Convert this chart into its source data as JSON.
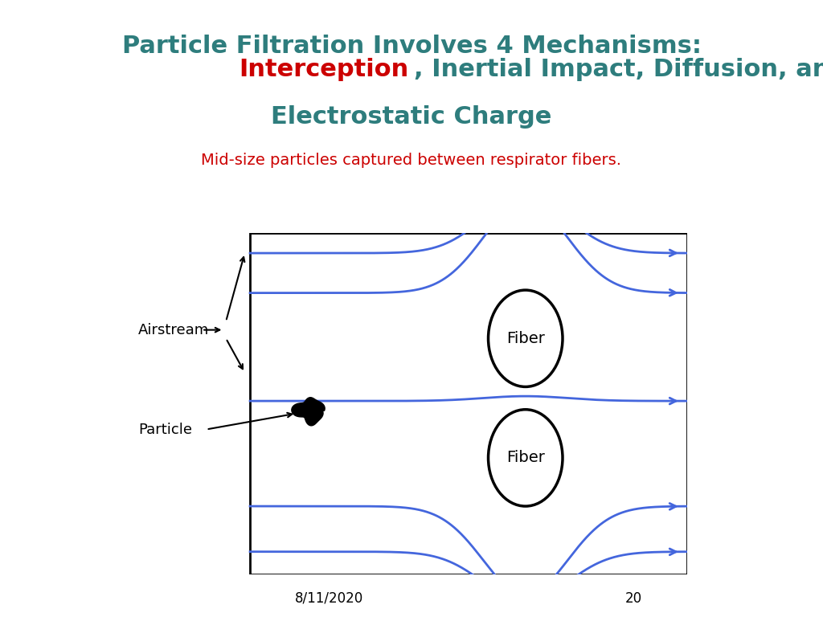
{
  "title_line1": "Particle Filtration Involves 4 Mechanisms:",
  "title_line2_red": "Interception",
  "title_line2_rest": ", Inertial Impact, Diffusion, and",
  "title_line3": "Electrostatic Charge",
  "title_color": "#2E7D7D",
  "title_red_color": "#CC0000",
  "subtitle": "Mid-size particles captured between respirator fibers.",
  "subtitle_color": "#CC0000",
  "date_text": "8/11/2020",
  "page_text": "20",
  "streamline_color": "#4466DD",
  "fiber_color": "black",
  "particle_color": "black",
  "airstream_label": "Airstream",
  "particle_label": "Particle",
  "fiber_label": "Fiber",
  "bg_color": "white",
  "title_fontsize": 22,
  "subtitle_fontsize": 14,
  "label_fontsize": 13,
  "fiber_fontsize": 14,
  "footer_fontsize": 12
}
